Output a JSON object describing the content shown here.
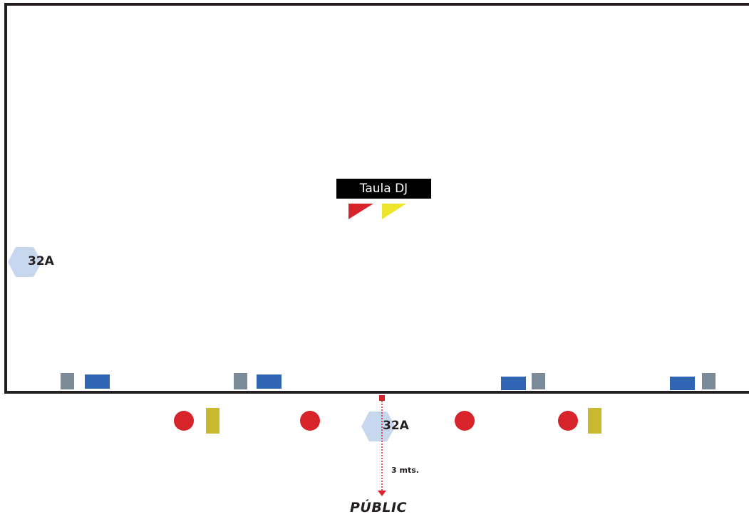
{
  "colors": {
    "border": "#231f20",
    "monitor_gray": "#7a8a96",
    "speaker_blue": "#2f65b3",
    "mic_red": "#d7232a",
    "stand_yellow": "#c9b92e",
    "hex_fill": "#c7d8ee",
    "flag_red": "#d7232a",
    "flag_yellow": "#ece52b",
    "dj_bg": "#000000"
  },
  "dj_table": {
    "label": "Taula DJ"
  },
  "power_left": {
    "label": "32A",
    "icon": "hexagon-icon"
  },
  "power_front": {
    "label": "32A",
    "icon": "hexagon-icon"
  },
  "distance": {
    "label": "3 mts."
  },
  "audience": {
    "label": "PÚBLIC"
  }
}
